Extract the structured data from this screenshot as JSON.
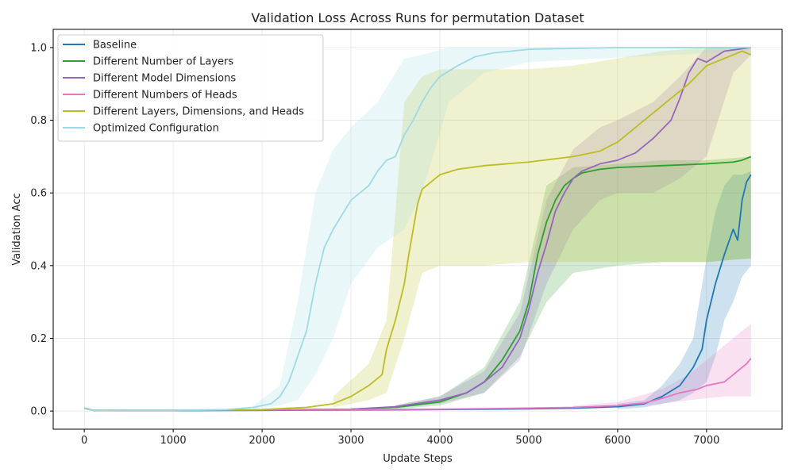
{
  "chart_data": {
    "type": "line",
    "title": "Validation Loss Across Runs for permutation Dataset",
    "xlabel": "Update Steps",
    "ylabel": "Validation Acc",
    "xlim": [
      -350,
      7850
    ],
    "ylim": [
      -0.05,
      1.05
    ],
    "xticks": [
      0,
      1000,
      2000,
      3000,
      4000,
      5000,
      6000,
      7000
    ],
    "yticks": [
      0.0,
      0.2,
      0.4,
      0.6,
      0.8,
      1.0
    ],
    "grid": true,
    "legend_position": "top-left",
    "series": [
      {
        "name": "Baseline",
        "color": "#1f77b4",
        "points": [
          [
            0,
            0.008
          ],
          [
            100,
            0.002
          ],
          [
            500,
            0.001
          ],
          [
            1000,
            0.001
          ],
          [
            2000,
            0.002
          ],
          [
            3000,
            0.003
          ],
          [
            4000,
            0.004
          ],
          [
            5000,
            0.006
          ],
          [
            5500,
            0.008
          ],
          [
            6000,
            0.012
          ],
          [
            6300,
            0.02
          ],
          [
            6500,
            0.04
          ],
          [
            6700,
            0.07
          ],
          [
            6850,
            0.12
          ],
          [
            6950,
            0.17
          ],
          [
            7000,
            0.25
          ],
          [
            7100,
            0.35
          ],
          [
            7200,
            0.43
          ],
          [
            7300,
            0.5
          ],
          [
            7350,
            0.47
          ],
          [
            7400,
            0.58
          ],
          [
            7450,
            0.63
          ],
          [
            7500,
            0.65
          ]
        ],
        "band": [
          [
            6000,
            0.005,
            0.02
          ],
          [
            6300,
            0.01,
            0.03
          ],
          [
            6500,
            0.02,
            0.07
          ],
          [
            6700,
            0.03,
            0.13
          ],
          [
            6850,
            0.05,
            0.2
          ],
          [
            7000,
            0.08,
            0.42
          ],
          [
            7100,
            0.15,
            0.55
          ],
          [
            7200,
            0.25,
            0.62
          ],
          [
            7300,
            0.3,
            0.65
          ],
          [
            7400,
            0.37,
            0.65
          ],
          [
            7500,
            0.4,
            0.66
          ]
        ]
      },
      {
        "name": "Different Number of Layers",
        "color": "#2ca02c",
        "points": [
          [
            0,
            0.007
          ],
          [
            100,
            0.002
          ],
          [
            1000,
            0.002
          ],
          [
            2000,
            0.003
          ],
          [
            3000,
            0.005
          ],
          [
            3500,
            0.01
          ],
          [
            4000,
            0.025
          ],
          [
            4300,
            0.05
          ],
          [
            4500,
            0.08
          ],
          [
            4700,
            0.14
          ],
          [
            4900,
            0.22
          ],
          [
            5000,
            0.3
          ],
          [
            5100,
            0.43
          ],
          [
            5200,
            0.52
          ],
          [
            5300,
            0.58
          ],
          [
            5400,
            0.62
          ],
          [
            5500,
            0.64
          ],
          [
            5600,
            0.655
          ],
          [
            5800,
            0.665
          ],
          [
            6000,
            0.67
          ],
          [
            6500,
            0.675
          ],
          [
            7000,
            0.68
          ],
          [
            7300,
            0.685
          ],
          [
            7400,
            0.69
          ],
          [
            7500,
            0.7
          ]
        ],
        "band": [
          [
            3500,
            0.005,
            0.015
          ],
          [
            4000,
            0.015,
            0.04
          ],
          [
            4500,
            0.05,
            0.12
          ],
          [
            4900,
            0.15,
            0.3
          ],
          [
            5200,
            0.3,
            0.62
          ],
          [
            5500,
            0.38,
            0.67
          ],
          [
            6000,
            0.4,
            0.68
          ],
          [
            6500,
            0.41,
            0.69
          ],
          [
            7000,
            0.41,
            0.69
          ],
          [
            7500,
            0.42,
            0.7
          ]
        ]
      },
      {
        "name": "Different Model Dimensions",
        "color": "#9467bd",
        "points": [
          [
            0,
            0.007
          ],
          [
            100,
            0.002
          ],
          [
            1000,
            0.002
          ],
          [
            2000,
            0.003
          ],
          [
            3000,
            0.005
          ],
          [
            3500,
            0.012
          ],
          [
            4000,
            0.03
          ],
          [
            4300,
            0.05
          ],
          [
            4500,
            0.08
          ],
          [
            4700,
            0.12
          ],
          [
            4900,
            0.2
          ],
          [
            5000,
            0.28
          ],
          [
            5100,
            0.38
          ],
          [
            5200,
            0.46
          ],
          [
            5300,
            0.55
          ],
          [
            5400,
            0.6
          ],
          [
            5500,
            0.64
          ],
          [
            5600,
            0.66
          ],
          [
            5800,
            0.68
          ],
          [
            6000,
            0.69
          ],
          [
            6200,
            0.71
          ],
          [
            6400,
            0.75
          ],
          [
            6600,
            0.8
          ],
          [
            6700,
            0.86
          ],
          [
            6800,
            0.93
          ],
          [
            6900,
            0.97
          ],
          [
            7000,
            0.96
          ],
          [
            7200,
            0.99
          ],
          [
            7500,
            1.0
          ]
        ],
        "band": [
          [
            3500,
            0.008,
            0.016
          ],
          [
            4000,
            0.02,
            0.04
          ],
          [
            4500,
            0.05,
            0.11
          ],
          [
            4900,
            0.14,
            0.27
          ],
          [
            5200,
            0.35,
            0.58
          ],
          [
            5500,
            0.5,
            0.72
          ],
          [
            5800,
            0.58,
            0.78
          ],
          [
            6000,
            0.6,
            0.8
          ],
          [
            6400,
            0.6,
            0.85
          ],
          [
            6700,
            0.64,
            0.92
          ],
          [
            7000,
            0.7,
            1.0
          ],
          [
            7300,
            0.93,
            1.0
          ],
          [
            7500,
            0.98,
            1.0
          ]
        ]
      },
      {
        "name": "Different Numbers of Heads",
        "color": "#e377c2",
        "points": [
          [
            0,
            0.007
          ],
          [
            100,
            0.002
          ],
          [
            1000,
            0.002
          ],
          [
            2000,
            0.003
          ],
          [
            3000,
            0.004
          ],
          [
            4000,
            0.005
          ],
          [
            5000,
            0.008
          ],
          [
            5500,
            0.01
          ],
          [
            6000,
            0.015
          ],
          [
            6300,
            0.022
          ],
          [
            6500,
            0.035
          ],
          [
            6700,
            0.05
          ],
          [
            6900,
            0.06
          ],
          [
            7000,
            0.07
          ],
          [
            7200,
            0.08
          ],
          [
            7300,
            0.1
          ],
          [
            7400,
            0.12
          ],
          [
            7450,
            0.13
          ],
          [
            7500,
            0.145
          ]
        ],
        "band": [
          [
            5500,
            0.005,
            0.015
          ],
          [
            6000,
            0.008,
            0.025
          ],
          [
            6500,
            0.02,
            0.06
          ],
          [
            6800,
            0.03,
            0.1
          ],
          [
            7000,
            0.035,
            0.14
          ],
          [
            7200,
            0.04,
            0.18
          ],
          [
            7400,
            0.04,
            0.22
          ],
          [
            7500,
            0.04,
            0.24
          ]
        ]
      },
      {
        "name": "Different Layers, Dimensions, and Heads",
        "color": "#bcbd22",
        "points": [
          [
            0,
            0.007
          ],
          [
            100,
            0.002
          ],
          [
            1000,
            0.002
          ],
          [
            2000,
            0.004
          ],
          [
            2500,
            0.01
          ],
          [
            2800,
            0.02
          ],
          [
            3000,
            0.04
          ],
          [
            3200,
            0.07
          ],
          [
            3350,
            0.1
          ],
          [
            3400,
            0.17
          ],
          [
            3500,
            0.25
          ],
          [
            3600,
            0.35
          ],
          [
            3650,
            0.43
          ],
          [
            3700,
            0.5
          ],
          [
            3750,
            0.57
          ],
          [
            3800,
            0.61
          ],
          [
            3900,
            0.63
          ],
          [
            4000,
            0.65
          ],
          [
            4200,
            0.665
          ],
          [
            4500,
            0.675
          ],
          [
            5000,
            0.685
          ],
          [
            5500,
            0.7
          ],
          [
            5800,
            0.715
          ],
          [
            6000,
            0.74
          ],
          [
            6200,
            0.78
          ],
          [
            6400,
            0.82
          ],
          [
            6600,
            0.86
          ],
          [
            6800,
            0.9
          ],
          [
            7000,
            0.95
          ],
          [
            7200,
            0.97
          ],
          [
            7400,
            0.99
          ],
          [
            7500,
            0.98
          ]
        ],
        "band": [
          [
            2800,
            0.01,
            0.04
          ],
          [
            3200,
            0.03,
            0.13
          ],
          [
            3400,
            0.05,
            0.25
          ],
          [
            3600,
            0.2,
            0.85
          ],
          [
            3800,
            0.38,
            0.92
          ],
          [
            4000,
            0.4,
            0.94
          ],
          [
            4500,
            0.4,
            0.94
          ],
          [
            5000,
            0.41,
            0.94
          ],
          [
            5500,
            0.41,
            0.95
          ],
          [
            6000,
            0.41,
            0.97
          ],
          [
            6500,
            0.41,
            0.99
          ],
          [
            7000,
            0.41,
            1.0
          ],
          [
            7500,
            0.42,
            1.0
          ]
        ]
      },
      {
        "name": "Optimized Configuration",
        "color": "#9edae5",
        "points": [
          [
            0,
            0.007
          ],
          [
            100,
            0.002
          ],
          [
            1000,
            0.002
          ],
          [
            1600,
            0.004
          ],
          [
            1900,
            0.01
          ],
          [
            2100,
            0.02
          ],
          [
            2200,
            0.04
          ],
          [
            2300,
            0.08
          ],
          [
            2400,
            0.15
          ],
          [
            2500,
            0.22
          ],
          [
            2600,
            0.35
          ],
          [
            2700,
            0.45
          ],
          [
            2800,
            0.5
          ],
          [
            2900,
            0.54
          ],
          [
            3000,
            0.58
          ],
          [
            3100,
            0.6
          ],
          [
            3200,
            0.62
          ],
          [
            3300,
            0.66
          ],
          [
            3400,
            0.69
          ],
          [
            3500,
            0.7
          ],
          [
            3600,
            0.76
          ],
          [
            3700,
            0.8
          ],
          [
            3800,
            0.85
          ],
          [
            3900,
            0.89
          ],
          [
            4000,
            0.92
          ],
          [
            4200,
            0.95
          ],
          [
            4400,
            0.975
          ],
          [
            4600,
            0.985
          ],
          [
            5000,
            0.995
          ],
          [
            6000,
            1.0
          ],
          [
            7500,
            1.0
          ]
        ],
        "band": [
          [
            1900,
            0.005,
            0.015
          ],
          [
            2200,
            0.015,
            0.07
          ],
          [
            2400,
            0.03,
            0.3
          ],
          [
            2600,
            0.1,
            0.6
          ],
          [
            2800,
            0.2,
            0.72
          ],
          [
            3000,
            0.35,
            0.78
          ],
          [
            3300,
            0.45,
            0.85
          ],
          [
            3600,
            0.5,
            0.97
          ],
          [
            3800,
            0.6,
            0.98
          ],
          [
            4100,
            0.85,
            1.0
          ],
          [
            4500,
            0.93,
            1.0
          ],
          [
            5000,
            0.96,
            1.0
          ],
          [
            7500,
            0.99,
            1.0
          ]
        ]
      }
    ]
  }
}
